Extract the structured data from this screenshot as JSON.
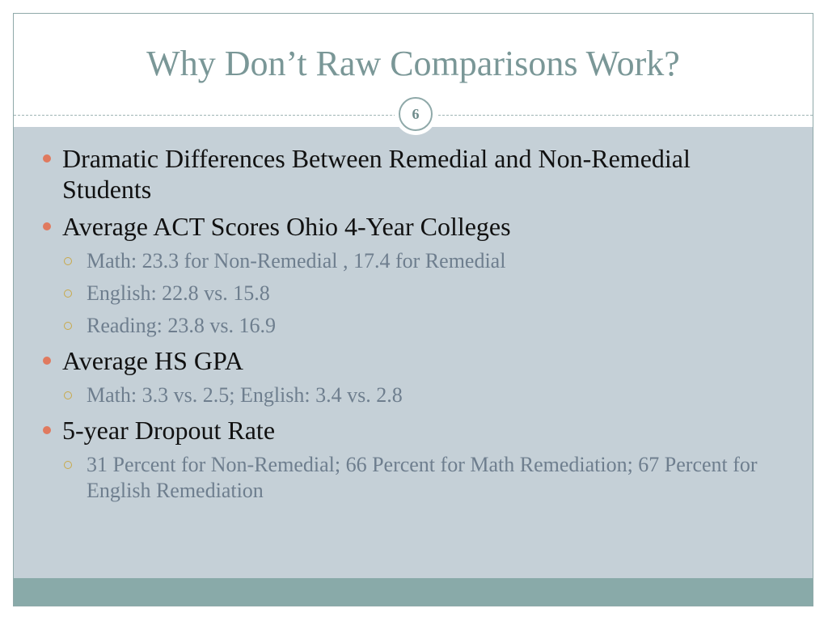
{
  "slide": {
    "title": "Why Don’t Raw Comparisons Work?",
    "number": "6"
  },
  "bullets": [
    {
      "text": "Dramatic Differences Between Remedial and Non-Remedial Students",
      "sub": []
    },
    {
      "text": "Average ACT Scores Ohio 4-Year Colleges",
      "sub": [
        "Math: 23.3 for Non-Remedial , 17.4 for Remedial",
        "English: 22.8 vs. 15.8",
        "Reading: 23.8 vs. 16.9"
      ]
    },
    {
      "text": "Average HS GPA",
      "sub": [
        "Math: 3.3 vs. 2.5; English: 3.4 vs. 2.8"
      ]
    },
    {
      "text": "5-year Dropout Rate",
      "sub": [
        "31 Percent for Non-Remedial; 66 Percent for Math Remediation; 67 Percent for English Remediation"
      ]
    }
  ],
  "colors": {
    "title": "#7a9797",
    "body_background": "#c5d0d7",
    "footer": "#89aaa9",
    "main_bullet": "#e07a5f",
    "sub_bullet": "#c8a94a",
    "sub_text": "#6e7e8e"
  }
}
